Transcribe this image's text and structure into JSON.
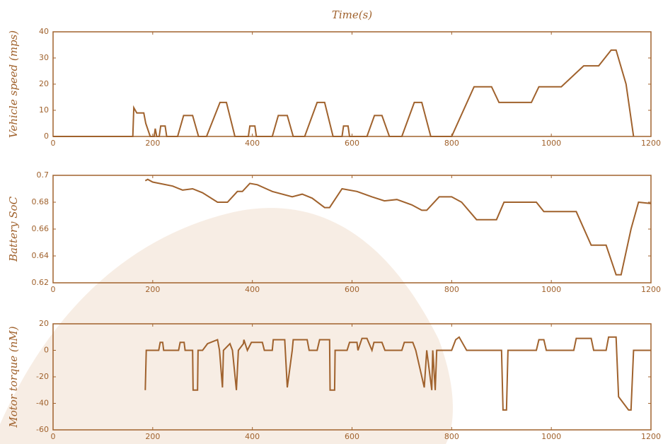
{
  "chart_data": [
    {
      "type": "line",
      "title": "Time(s)",
      "ylabel": "Vehicle speed (mps)",
      "color": "#a0622d",
      "xlim": [
        0,
        1200
      ],
      "xticks": [
        0,
        200,
        400,
        600,
        800,
        1000,
        1200
      ],
      "ylim": [
        0,
        40
      ],
      "yticks": [
        0,
        10,
        20,
        30,
        40
      ],
      "x": [
        0,
        160,
        162,
        168,
        182,
        186,
        195,
        203,
        205,
        208,
        213,
        216,
        225,
        228,
        250,
        262,
        280,
        292,
        308,
        335,
        348,
        365,
        392,
        395,
        405,
        408,
        440,
        452,
        470,
        482,
        505,
        530,
        545,
        562,
        580,
        583,
        592,
        595,
        630,
        645,
        660,
        675,
        700,
        725,
        740,
        758,
        800,
        845,
        880,
        895,
        960,
        975,
        1020,
        1065,
        1095,
        1120,
        1130,
        1150,
        1165
      ],
      "values": [
        0,
        0,
        11,
        9,
        9,
        5,
        0,
        0,
        3,
        0,
        0,
        4,
        4,
        0,
        0,
        8,
        8,
        0,
        0,
        13,
        13,
        0,
        0,
        4,
        4,
        0,
        0,
        8,
        8,
        0,
        0,
        13,
        13,
        0,
        0,
        4,
        4,
        0,
        0,
        8,
        8,
        0,
        0,
        13,
        13,
        0,
        0,
        19,
        19,
        13,
        13,
        19,
        19,
        27,
        27,
        33,
        33,
        20,
        0
      ]
    },
    {
      "type": "line",
      "ylabel": "Battery SoC",
      "color": "#a0622d",
      "xlim": [
        0,
        1200
      ],
      "xticks": [
        0,
        200,
        400,
        600,
        800,
        1000,
        1200
      ],
      "ylim": [
        0.62,
        0.7
      ],
      "yticks": [
        0.62,
        0.64,
        0.66,
        0.68,
        0.7
      ],
      "x": [
        185,
        190,
        200,
        240,
        260,
        280,
        300,
        330,
        350,
        370,
        380,
        395,
        410,
        440,
        480,
        500,
        520,
        545,
        555,
        580,
        610,
        640,
        665,
        690,
        720,
        740,
        750,
        775,
        800,
        820,
        850,
        890,
        905,
        970,
        985,
        1050,
        1080,
        1110,
        1130,
        1140,
        1160,
        1175,
        1200
      ],
      "values": [
        0.696,
        0.697,
        0.695,
        0.692,
        0.689,
        0.69,
        0.687,
        0.68,
        0.68,
        0.688,
        0.688,
        0.694,
        0.693,
        0.688,
        0.684,
        0.686,
        0.683,
        0.676,
        0.676,
        0.69,
        0.688,
        0.684,
        0.681,
        0.682,
        0.678,
        0.674,
        0.674,
        0.684,
        0.684,
        0.68,
        0.667,
        0.667,
        0.68,
        0.68,
        0.673,
        0.673,
        0.648,
        0.648,
        0.626,
        0.626,
        0.66,
        0.68,
        0.679
      ]
    },
    {
      "type": "line",
      "ylabel": "Motor torque (nM)",
      "color": "#a0622d",
      "xlim": [
        0,
        1200
      ],
      "xticks": [
        0,
        200,
        400,
        600,
        800,
        1000,
        1200
      ],
      "ylim": [
        -60,
        20
      ],
      "yticks": [
        -60,
        -40,
        -20,
        0,
        20
      ],
      "x": [
        185,
        187,
        212,
        215,
        220,
        222,
        252,
        255,
        263,
        265,
        280,
        281,
        290,
        291,
        300,
        310,
        330,
        334,
        340,
        342,
        355,
        360,
        368,
        372,
        382,
        383,
        390,
        398,
        420,
        424,
        440,
        442,
        465,
        470,
        480,
        482,
        510,
        514,
        530,
        535,
        555,
        556,
        565,
        566,
        590,
        595,
        610,
        612,
        620,
        630,
        640,
        644,
        660,
        666,
        700,
        705,
        722,
        728,
        745,
        750,
        760,
        762,
        767,
        770,
        800,
        808,
        815,
        830,
        900,
        903,
        910,
        913,
        970,
        975,
        985,
        990,
        1045,
        1050,
        1080,
        1085,
        1110,
        1115,
        1130,
        1135,
        1155,
        1160,
        1165,
        1200
      ],
      "values": [
        -30,
        0,
        0,
        6,
        6,
        0,
        0,
        6,
        6,
        0,
        0,
        -30,
        -30,
        0,
        0,
        5,
        8,
        0,
        -28,
        0,
        5,
        0,
        -30,
        0,
        5,
        8,
        0,
        6,
        6,
        0,
        0,
        8,
        8,
        -28,
        0,
        8,
        8,
        0,
        0,
        8,
        8,
        -30,
        -30,
        0,
        0,
        6,
        6,
        0,
        9,
        9,
        0,
        6,
        6,
        0,
        0,
        6,
        6,
        0,
        -28,
        0,
        -30,
        0,
        -30,
        0,
        0,
        8,
        10,
        0,
        0,
        -45,
        -45,
        0,
        0,
        8,
        8,
        0,
        0,
        9,
        9,
        0,
        0,
        10,
        10,
        -35,
        -45,
        -45,
        0,
        0
      ]
    }
  ]
}
